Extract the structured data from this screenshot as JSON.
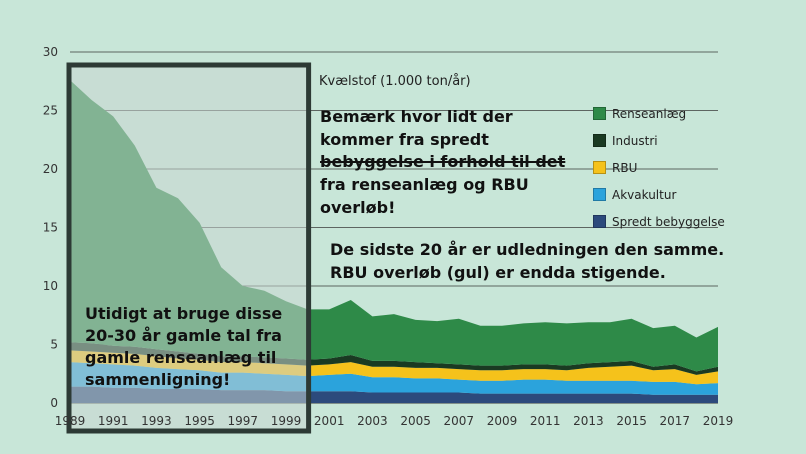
{
  "chart_data": {
    "type": "area",
    "stacked": true,
    "title": "Kvælstof (1.000 ton/år)",
    "ylim": [
      0,
      30
    ],
    "yticks": [
      0,
      5,
      10,
      15,
      20,
      25,
      30
    ],
    "xlim": [
      1989,
      2019
    ],
    "xticks": [
      "1989",
      "1991",
      "1993",
      "1995",
      "1997",
      "1999",
      "2001",
      "2003",
      "2005",
      "2007",
      "2009",
      "2011",
      "2013",
      "2015",
      "2017",
      "2019"
    ],
    "x": [
      1989,
      1990,
      1991,
      1992,
      1993,
      1994,
      1995,
      1996,
      1997,
      1998,
      1999,
      2000,
      2001,
      2002,
      2003,
      2004,
      2005,
      2006,
      2007,
      2008,
      2009,
      2010,
      2011,
      2012,
      2013,
      2014,
      2015,
      2016,
      2017,
      2018,
      2019
    ],
    "series": [
      {
        "name": "Spredt bebyggelse",
        "color": "#2c4a7c",
        "values": [
          1.4,
          1.4,
          1.3,
          1.3,
          1.2,
          1.2,
          1.2,
          1.1,
          1.1,
          1.1,
          1.0,
          1.0,
          1.0,
          1.0,
          0.9,
          0.9,
          0.9,
          0.9,
          0.9,
          0.8,
          0.8,
          0.8,
          0.8,
          0.8,
          0.8,
          0.8,
          0.8,
          0.7,
          0.7,
          0.7,
          0.7
        ]
      },
      {
        "name": "Akvakultur",
        "color": "#2ba3dc",
        "values": [
          2.1,
          2.0,
          2.0,
          1.9,
          1.8,
          1.7,
          1.6,
          1.5,
          1.5,
          1.4,
          1.4,
          1.3,
          1.4,
          1.5,
          1.3,
          1.3,
          1.2,
          1.2,
          1.1,
          1.1,
          1.1,
          1.2,
          1.2,
          1.1,
          1.1,
          1.1,
          1.1,
          1.1,
          1.1,
          0.9,
          1.0
        ]
      },
      {
        "name": "RBU",
        "color": "#f5c21b",
        "values": [
          1.0,
          1.0,
          1.0,
          1.0,
          1.0,
          0.9,
          0.9,
          0.9,
          0.9,
          0.9,
          0.9,
          0.9,
          0.9,
          1.0,
          0.9,
          0.9,
          0.9,
          0.9,
          0.9,
          0.9,
          0.9,
          0.9,
          0.9,
          0.9,
          1.1,
          1.2,
          1.3,
          1.0,
          1.1,
          0.8,
          1.0
        ]
      },
      {
        "name": "Industri",
        "color": "#1a3a22",
        "values": [
          0.7,
          0.7,
          0.6,
          0.6,
          0.6,
          0.6,
          0.5,
          0.5,
          0.5,
          0.5,
          0.5,
          0.5,
          0.5,
          0.6,
          0.5,
          0.5,
          0.5,
          0.4,
          0.4,
          0.4,
          0.4,
          0.4,
          0.4,
          0.4,
          0.4,
          0.4,
          0.4,
          0.3,
          0.4,
          0.3,
          0.4
        ]
      },
      {
        "name": "Renseanlæg",
        "color": "#2e8a48",
        "values": [
          22.4,
          20.8,
          19.6,
          17.2,
          13.8,
          13.1,
          11.2,
          7.6,
          6.0,
          5.7,
          4.9,
          4.3,
          4.2,
          4.7,
          3.8,
          4.0,
          3.6,
          3.6,
          3.9,
          3.4,
          3.4,
          3.5,
          3.6,
          3.6,
          3.5,
          3.4,
          3.6,
          3.3,
          3.3,
          2.9,
          3.4
        ]
      }
    ]
  },
  "notes": {
    "note1": "Bemærk hvor lidt der kommer fra spredt bebyggelse i forhold til det fra renseanlæg og RBU overløb!",
    "note1_struck": "bebyggelse i forhold til det",
    "note2_line1": "De sidste 20 år er udledningen den samme.",
    "note2_line2": "RBU overløb (gul) er endda stigende.",
    "note3": "Utidigt at bruge disse 20-30 år gamle tal fra gamle renseanlæg til sammenligning!"
  },
  "colors": {
    "background": "#c8e6d8",
    "overlay": "#c9d6d2",
    "highlight_border": "#2d3a35"
  }
}
